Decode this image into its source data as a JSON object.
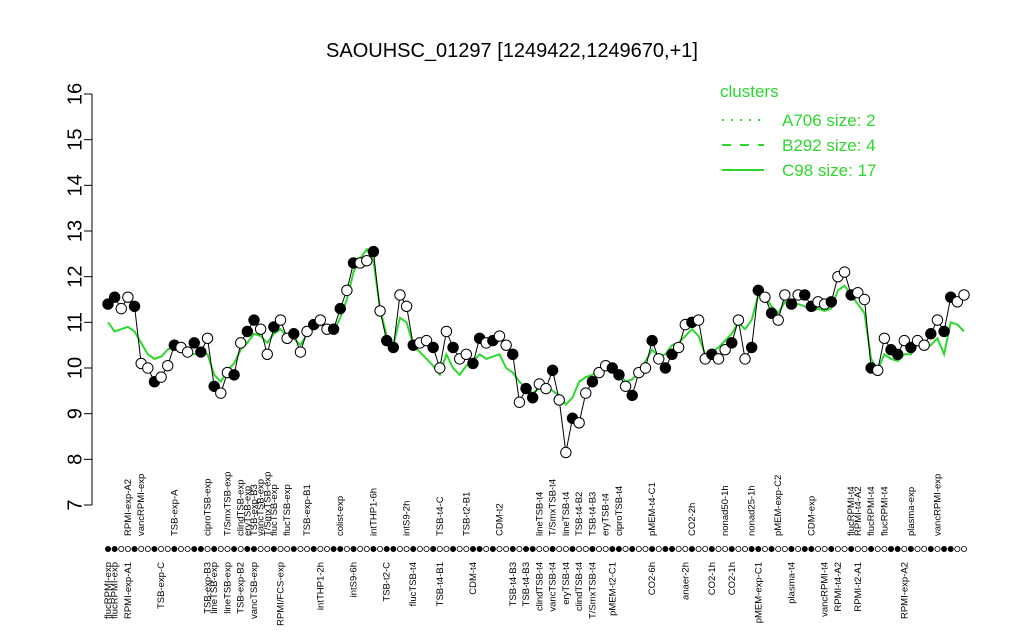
{
  "chart_data": {
    "type": "line",
    "title": "SAOUHSC_01297 [1249422,1249670,+1]",
    "ylim": [
      7,
      16
    ],
    "yticks": [
      7,
      8,
      9,
      10,
      11,
      12,
      13,
      14,
      15,
      16
    ],
    "accent_color": "#2dd82d",
    "legend": {
      "title": "clusters",
      "position": "top-right",
      "entries": [
        {
          "label": "A706 size: 2",
          "style": "dotted"
        },
        {
          "label": "B292 size: 4",
          "style": "dashed"
        },
        {
          "label": "C98 size: 17",
          "style": "solid"
        }
      ]
    },
    "top_labels": [
      {
        "label": "RPMI-exp-A2",
        "i": 3
      },
      {
        "label": "vancRPMI-exp",
        "i": 5
      },
      {
        "label": "TSB-exp-A",
        "i": 10
      },
      {
        "label": "ciproTSB-exp",
        "i": 15
      },
      {
        "label": "T/SmxTSB-exp",
        "i": 18
      },
      {
        "label": "clindTSB-exp",
        "i": 20
      },
      {
        "label": "eryTSB-exp",
        "i": 21
      },
      {
        "label": "T/SmxTSB-exp",
        "i": 24
      },
      {
        "label": "vancTSB-exp",
        "i": 23
      },
      {
        "label": "TSB-exp-B3",
        "i": 22
      },
      {
        "label": "flucTSB-exp",
        "i": 25
      },
      {
        "label": "flucTSB-exp",
        "i": 27
      },
      {
        "label": "TSB-exp-B1",
        "i": 30
      },
      {
        "label": "colist-exp",
        "i": 35
      },
      {
        "label": "intTHP1-6h",
        "i": 40
      },
      {
        "label": "intS9-2h",
        "i": 45
      },
      {
        "label": "TSB-t4-C",
        "i": 50
      },
      {
        "label": "TSB-t2-B1",
        "i": 54
      },
      {
        "label": "CDM-t2",
        "i": 59
      },
      {
        "label": "lineTSB-t4",
        "i": 65
      },
      {
        "label": "T/SmxTSB-t4",
        "i": 67
      },
      {
        "label": "lineTSB-t4",
        "i": 69
      },
      {
        "label": "TSB-t4-B2",
        "i": 71
      },
      {
        "label": "TSB-t4-B3",
        "i": 73
      },
      {
        "label": "eryTSB-t4",
        "i": 75
      },
      {
        "label": "ciproTSB-t4",
        "i": 77
      },
      {
        "label": "pMEM-t4-C1",
        "i": 82
      },
      {
        "label": "CO2-2h",
        "i": 88
      },
      {
        "label": "nonad50-1h",
        "i": 93
      },
      {
        "label": "nonad25-1h",
        "i": 97
      },
      {
        "label": "pMEM-exp-C2",
        "i": 101
      },
      {
        "label": "CDM-exp",
        "i": 106
      },
      {
        "label": "flucRPMI-t4",
        "i": 112
      },
      {
        "label": "RPMI-t4-A2",
        "i": 113
      },
      {
        "label": "flucRPMI-t4",
        "i": 115
      },
      {
        "label": "flucRPMI-t4",
        "i": 117
      },
      {
        "label": "plasma-exp",
        "i": 121
      },
      {
        "label": "vancRPMI-exp",
        "i": 125
      }
    ],
    "bottom_labels": [
      {
        "label": "flucRPMI-exp",
        "i": 0
      },
      {
        "label": "flucRPMI-exp",
        "i": 1
      },
      {
        "label": "RPMI-exp-A1",
        "i": 3
      },
      {
        "label": "TSB-exp-C",
        "i": 8
      },
      {
        "label": "TSB-exp-B3",
        "i": 15
      },
      {
        "label": "lineTSB-exp",
        "i": 16
      },
      {
        "label": "lineTSB-exp",
        "i": 18
      },
      {
        "label": "TSB-exp-B2",
        "i": 20
      },
      {
        "label": "vancTSB-exp",
        "i": 22
      },
      {
        "label": "RPMI/FCS-exp",
        "i": 26
      },
      {
        "label": "intTHP1-2h",
        "i": 32
      },
      {
        "label": "intS9-6h",
        "i": 37
      },
      {
        "label": "TSB-t2-C",
        "i": 42
      },
      {
        "label": "flucTSB-t4",
        "i": 46
      },
      {
        "label": "TSB-t4-B1",
        "i": 50
      },
      {
        "label": "CDM-t4",
        "i": 55
      },
      {
        "label": "TSB-t4-B3",
        "i": 61
      },
      {
        "label": "TSB-t4-B3",
        "i": 63
      },
      {
        "label": "clindTSB-t4",
        "i": 65
      },
      {
        "label": "vancTSB-t4",
        "i": 67
      },
      {
        "label": "eryTSB-t4",
        "i": 69
      },
      {
        "label": "clindTSB-t4",
        "i": 71
      },
      {
        "label": "T/SmxTSB-t4",
        "i": 73
      },
      {
        "label": "pMEM-t2-C1",
        "i": 76
      },
      {
        "label": "CO2-6h",
        "i": 82
      },
      {
        "label": "anaer-2h",
        "i": 87
      },
      {
        "label": "CO2-1h",
        "i": 91
      },
      {
        "label": "CO2-1h",
        "i": 94
      },
      {
        "label": "pMEM-exp-C1",
        "i": 98
      },
      {
        "label": "plasma-t4",
        "i": 103
      },
      {
        "label": "vancRPMI-t4",
        "i": 108
      },
      {
        "label": "RPMI-t4-A2",
        "i": 110
      },
      {
        "label": "RPMI-t2-A1",
        "i": 113
      },
      {
        "label": "RPMI-exp-A2",
        "i": 120
      }
    ],
    "series": [
      {
        "style": "observed",
        "values": [
          11.4,
          11.55,
          11.3,
          11.55,
          11.35,
          10.1,
          10.0,
          9.7,
          9.8,
          10.05,
          10.5,
          10.45,
          10.35,
          10.55,
          10.35,
          10.65,
          9.6,
          9.45,
          9.9,
          9.85,
          10.55,
          10.8,
          11.05,
          10.85,
          10.3,
          10.9,
          11.05,
          10.65,
          10.75,
          10.35,
          10.8,
          10.95,
          11.05,
          10.85,
          10.85,
          11.3,
          11.7,
          12.3,
          12.3,
          12.35,
          12.55,
          11.25,
          10.6,
          10.45,
          11.6,
          11.35,
          10.5,
          10.55,
          10.6,
          10.45,
          10.0,
          10.8,
          10.45,
          10.2,
          10.3,
          10.1,
          10.65,
          10.55,
          10.6,
          10.7,
          10.5,
          10.3,
          9.25,
          9.55,
          9.35,
          9.65,
          9.55,
          9.95,
          9.3,
          8.15,
          8.9,
          8.8,
          9.45,
          9.7,
          9.9,
          10.05,
          10.0,
          9.85,
          9.6,
          9.4,
          9.9,
          10.0,
          10.6,
          10.2,
          10.0,
          10.3,
          10.45,
          10.95,
          11.0,
          11.05,
          10.2,
          10.3,
          10.2,
          10.4,
          10.55,
          11.05,
          10.2,
          10.45,
          11.7,
          11.55,
          11.2,
          11.05,
          11.6,
          11.4,
          11.6,
          11.6,
          11.35,
          11.45,
          11.4,
          11.45,
          12.0,
          12.1,
          11.6,
          11.65,
          11.5,
          10.0,
          9.95,
          10.65,
          10.4,
          10.3,
          10.6,
          10.45,
          10.6,
          10.5,
          10.75,
          11.05,
          10.8,
          11.55,
          11.45,
          11.6
        ]
      },
      {
        "style": "cluster",
        "values": [
          11.0,
          10.8,
          10.85,
          10.9,
          10.8,
          10.55,
          10.3,
          10.2,
          10.25,
          10.4,
          10.5,
          10.35,
          10.3,
          10.3,
          10.35,
          10.3,
          9.85,
          9.7,
          9.95,
          10.1,
          10.4,
          10.55,
          10.75,
          10.7,
          10.55,
          10.75,
          10.85,
          10.7,
          10.65,
          10.5,
          10.75,
          10.9,
          10.95,
          10.85,
          10.8,
          11.1,
          11.5,
          12.1,
          12.4,
          12.6,
          12.35,
          11.3,
          10.7,
          10.5,
          11.1,
          11.0,
          10.5,
          10.35,
          10.2,
          10.05,
          9.85,
          10.3,
          10.0,
          9.85,
          10.05,
          10.15,
          10.3,
          10.2,
          10.25,
          10.3,
          10.0,
          9.9,
          9.7,
          9.55,
          9.45,
          9.55,
          9.6,
          9.5,
          9.4,
          9.2,
          9.35,
          9.7,
          9.8,
          9.85,
          9.95,
          10.0,
          9.95,
          9.9,
          9.7,
          9.75,
          9.9,
          10.15,
          10.4,
          10.25,
          10.3,
          10.5,
          10.55,
          10.7,
          10.85,
          10.7,
          10.3,
          10.35,
          10.45,
          10.6,
          10.75,
          11.0,
          10.85,
          11.05,
          11.6,
          11.55,
          11.35,
          11.2,
          11.45,
          11.35,
          11.4,
          11.35,
          11.25,
          11.3,
          11.25,
          11.3,
          11.7,
          11.8,
          11.6,
          11.4,
          11.2,
          10.2,
          9.95,
          10.3,
          10.2,
          10.15,
          10.3,
          10.3,
          10.55,
          10.45,
          10.5,
          10.65,
          10.3,
          11.0,
          10.95,
          10.8
        ]
      }
    ]
  }
}
